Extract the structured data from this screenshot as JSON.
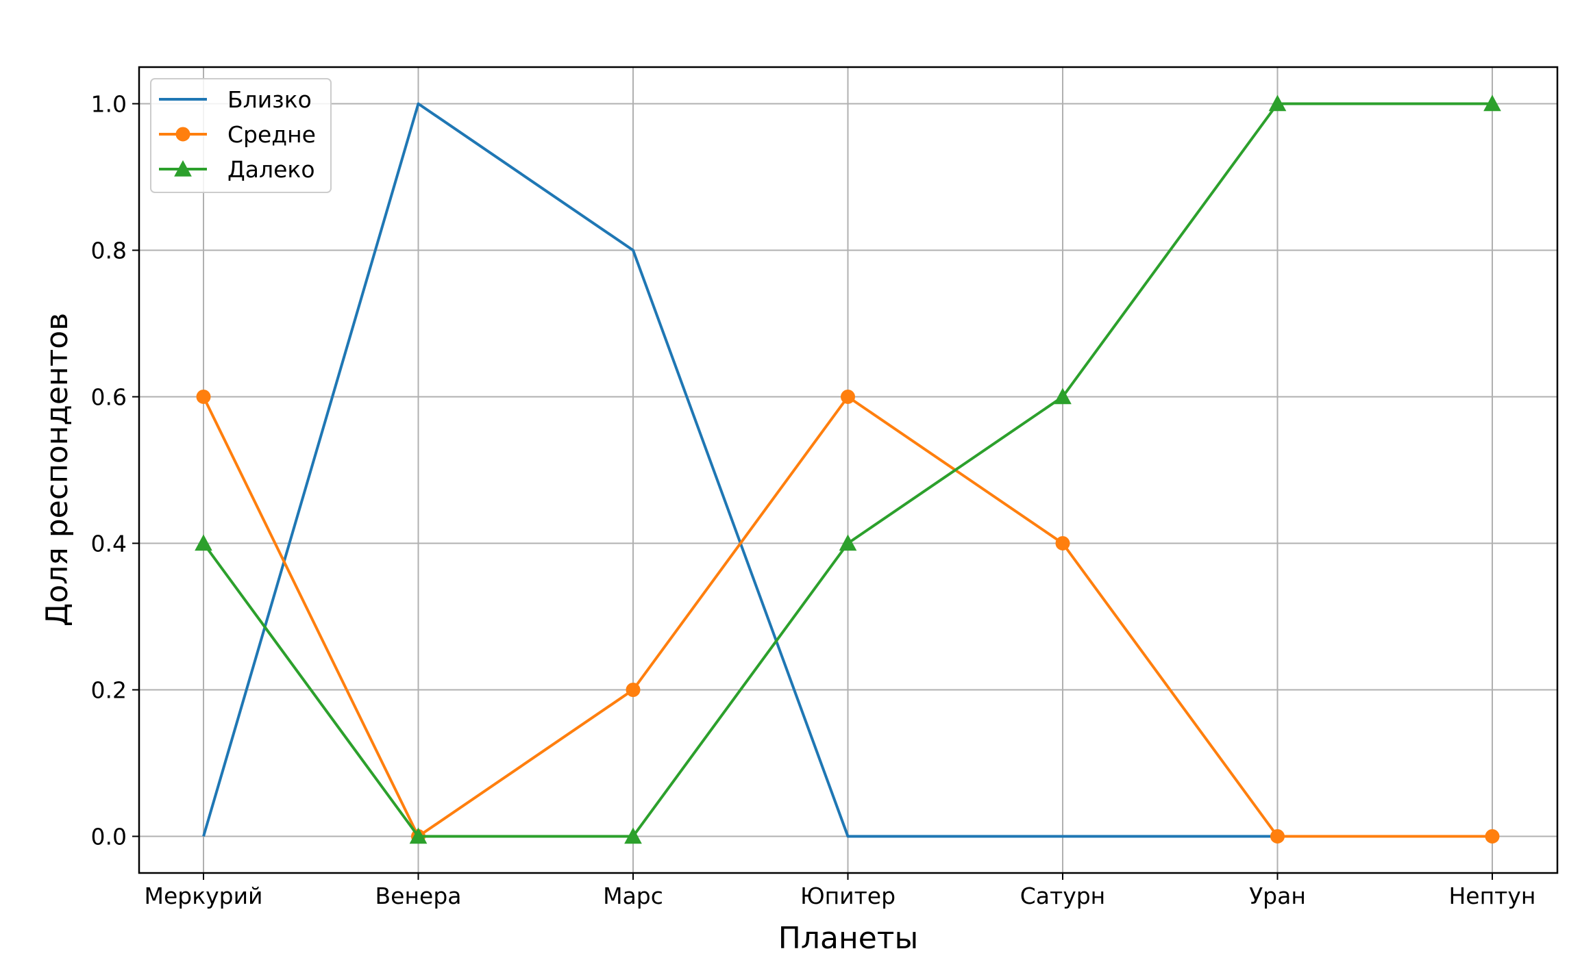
{
  "chart_data": {
    "type": "line",
    "title": "",
    "xlabel": "Планеты",
    "ylabel": "Доля респондентов",
    "categories": [
      "Меркурий",
      "Венера",
      "Марс",
      "Юпитер",
      "Сатурн",
      "Уран",
      "Нептун"
    ],
    "ylim": [
      -0.05,
      1.05
    ],
    "yticks": [
      0.0,
      0.2,
      0.4,
      0.6,
      0.8,
      1.0
    ],
    "ytick_labels": [
      "0.0",
      "0.2",
      "0.4",
      "0.6",
      "0.8",
      "1.0"
    ],
    "grid": true,
    "legend_position": "top-left",
    "series": [
      {
        "name": "Близко",
        "color": "#1f77b4",
        "marker": "none",
        "values": [
          0.0,
          1.0,
          0.8,
          0.0,
          0.0,
          0.0,
          null
        ]
      },
      {
        "name": "Средне",
        "color": "#ff7f0e",
        "marker": "circle",
        "values": [
          0.6,
          0.0,
          0.2,
          0.6,
          0.4,
          0.0,
          0.0
        ]
      },
      {
        "name": "Далеко",
        "color": "#2ca02c",
        "marker": "triangle",
        "values": [
          0.4,
          0.0,
          0.0,
          0.4,
          0.6,
          1.0,
          1.0
        ]
      }
    ]
  }
}
